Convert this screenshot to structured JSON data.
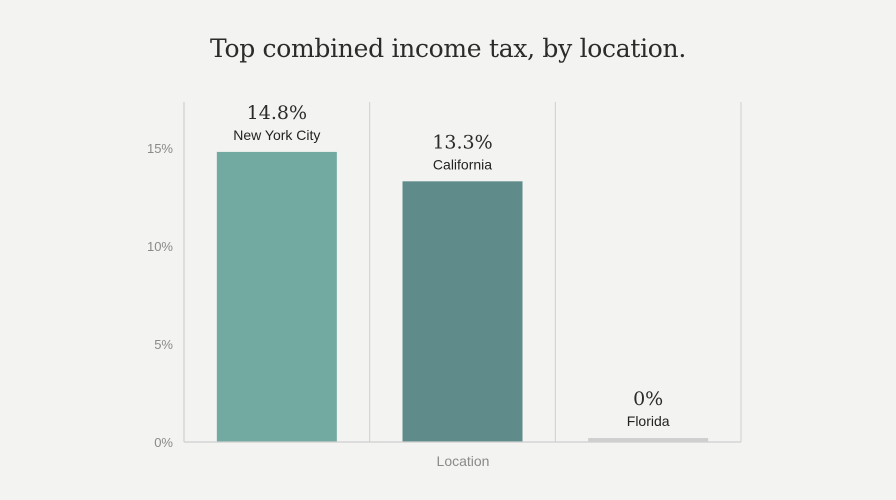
{
  "chart_data": {
    "type": "bar",
    "title": "Top combined income tax, by location.",
    "xlabel": "Location",
    "ylabel": "",
    "categories": [
      "New York City",
      "California",
      "Florida"
    ],
    "values": [
      14.8,
      13.3,
      0
    ],
    "value_labels": [
      "14.8%",
      "13.3%",
      "0%"
    ],
    "ylim": [
      0,
      15
    ],
    "yticks": [
      0,
      5,
      10,
      15
    ],
    "ytick_labels": [
      "0%",
      "5%",
      "10%",
      "15%"
    ],
    "grid": "vertical separators",
    "colors": [
      "#72aaa1",
      "#5f8b8b",
      "#cfcfcf"
    ],
    "axis_color": "#cfcfcf",
    "legend": "none"
  }
}
